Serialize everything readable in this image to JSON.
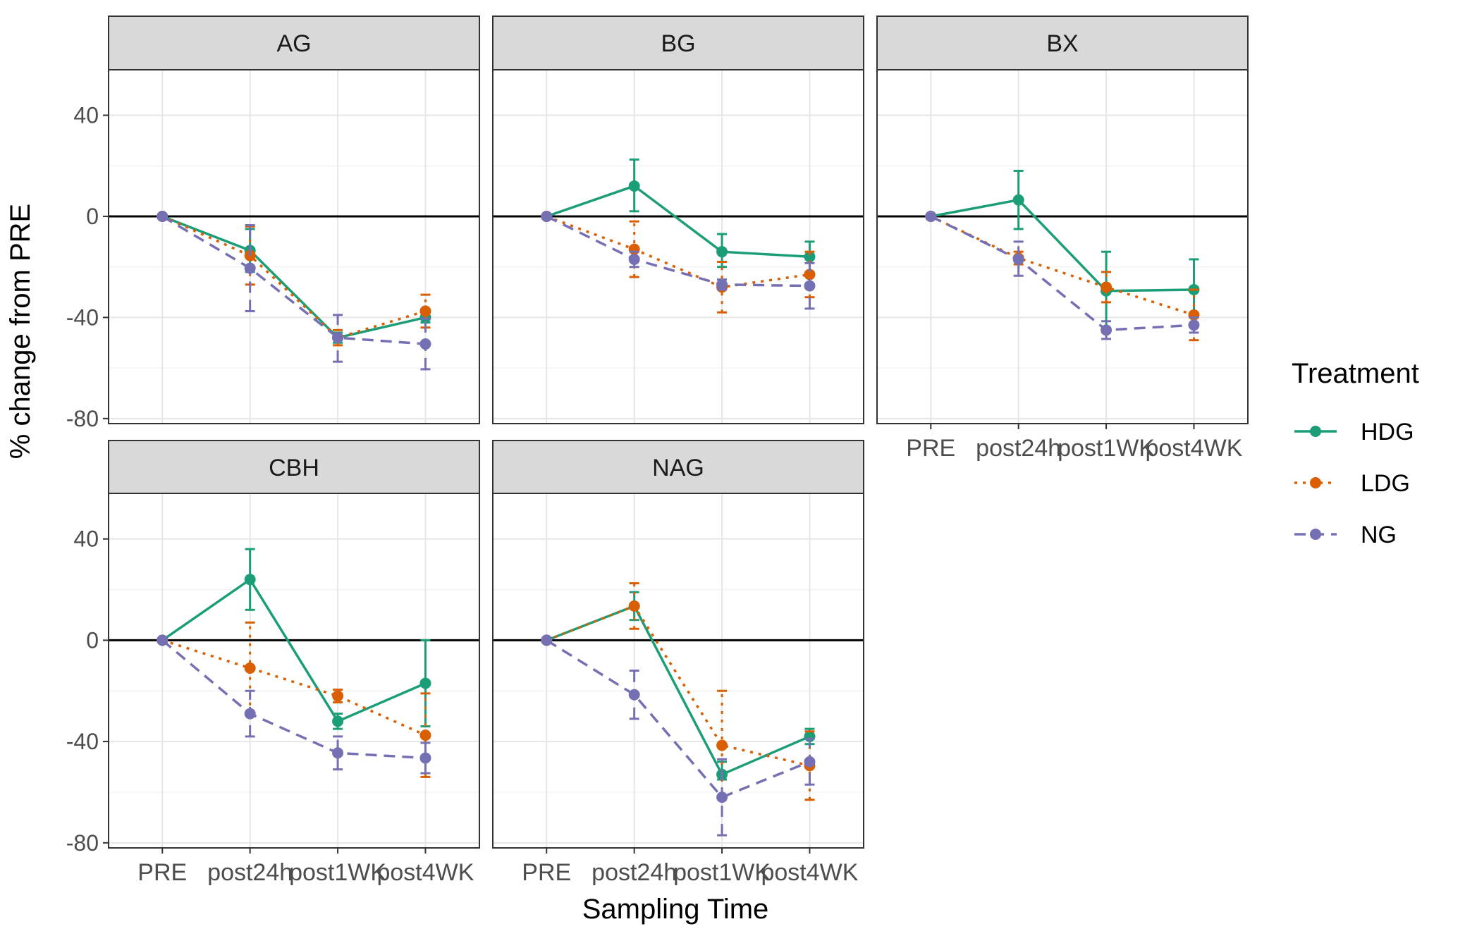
{
  "figure": {
    "xlabel": "Sampling Time",
    "ylabel": "% change from PRE",
    "legend_title": "Treatment",
    "legend_position": "right"
  },
  "chart_data": {
    "type": "line",
    "facet_by": "enzyme",
    "x": [
      "PRE",
      "post24h",
      "post1WK",
      "post4WK"
    ],
    "ylim": [
      -82,
      58
    ],
    "yticks": [
      -80,
      -40,
      0,
      40
    ],
    "reference_line_y": 0,
    "grid": true,
    "series_styles": [
      {
        "name": "HDG",
        "color": "#1B9E77",
        "dash": "solid"
      },
      {
        "name": "LDG",
        "color": "#D95F02",
        "dash": "dotted"
      },
      {
        "name": "NG",
        "color": "#7570B3",
        "dash": "dashed"
      }
    ],
    "panels": [
      {
        "title": "AG",
        "series": [
          {
            "name": "HDG",
            "values": [
              0,
              -13.5,
              -48,
              -40
            ],
            "err_low": [
              0,
              -22,
              -50,
              -42
            ],
            "err_high": [
              0,
              -5,
              -46,
              -37
            ]
          },
          {
            "name": "LDG",
            "values": [
              0,
              -15.5,
              -48,
              -37.5
            ],
            "err_low": [
              0,
              -27,
              -51,
              -44
            ],
            "err_high": [
              0,
              -4,
              -45,
              -31
            ]
          },
          {
            "name": "NG",
            "values": [
              0,
              -20.5,
              -48,
              -50.5
            ],
            "err_low": [
              0,
              -37.5,
              -57.5,
              -60.5
            ],
            "err_high": [
              0,
              -3.5,
              -39,
              -40.5
            ]
          }
        ]
      },
      {
        "title": "BG",
        "series": [
          {
            "name": "HDG",
            "values": [
              0,
              12,
              -14,
              -16
            ],
            "err_low": [
              0,
              2,
              -20,
              -22
            ],
            "err_high": [
              0,
              22.5,
              -7,
              -10
            ]
          },
          {
            "name": "LDG",
            "values": [
              0,
              -13,
              -28,
              -23
            ],
            "err_low": [
              0,
              -24,
              -38,
              -32
            ],
            "err_high": [
              0,
              -2,
              -18,
              -14
            ]
          },
          {
            "name": "NG",
            "values": [
              0,
              -17,
              -27,
              -27.5
            ],
            "err_low": [
              0,
              -20,
              -29,
              -36.5
            ],
            "err_high": [
              0,
              -14,
              -25,
              -18.5
            ]
          }
        ]
      },
      {
        "title": "BX",
        "series": [
          {
            "name": "HDG",
            "values": [
              0,
              6.5,
              -29.5,
              -29
            ],
            "err_low": [
              0,
              -5,
              -45,
              -40
            ],
            "err_high": [
              0,
              18,
              -14,
              -17
            ]
          },
          {
            "name": "LDG",
            "values": [
              0,
              -16.5,
              -28,
              -39
            ],
            "err_low": [
              0,
              -19,
              -34,
              -49
            ],
            "err_high": [
              0,
              -14,
              -22,
              -29
            ]
          },
          {
            "name": "NG",
            "values": [
              0,
              -17,
              -45,
              -43
            ],
            "err_low": [
              0,
              -23.5,
              -48.5,
              -46
            ],
            "err_high": [
              0,
              -10,
              -41.5,
              -40
            ]
          }
        ]
      },
      {
        "title": "CBH",
        "series": [
          {
            "name": "HDG",
            "values": [
              0,
              24,
              -32,
              -17
            ],
            "err_low": [
              0,
              12,
              -35,
              -34
            ],
            "err_high": [
              0,
              36,
              -29,
              0
            ]
          },
          {
            "name": "LDG",
            "values": [
              0,
              -11,
              -22,
              -37.5
            ],
            "err_low": [
              0,
              -29,
              -24.5,
              -54
            ],
            "err_high": [
              0,
              7,
              -19.5,
              -21
            ]
          },
          {
            "name": "NG",
            "values": [
              0,
              -29,
              -44.5,
              -46.5
            ],
            "err_low": [
              0,
              -38,
              -51,
              -52.5
            ],
            "err_high": [
              0,
              -20,
              -38,
              -40.5
            ]
          }
        ]
      },
      {
        "title": "NAG",
        "series": [
          {
            "name": "HDG",
            "values": [
              0,
              13.5,
              -53,
              -38
            ],
            "err_low": [
              0,
              8,
              -55,
              -41
            ],
            "err_high": [
              0,
              19,
              -48,
              -35
            ]
          },
          {
            "name": "LDG",
            "values": [
              0,
              13.5,
              -41.5,
              -49.5
            ],
            "err_low": [
              0,
              4.5,
              -62.5,
              -63
            ],
            "err_high": [
              0,
              22.5,
              -20,
              -36
            ]
          },
          {
            "name": "NG",
            "values": [
              0,
              -21.5,
              -62,
              -48
            ],
            "err_low": [
              0,
              -31,
              -77,
              -57
            ],
            "err_high": [
              0,
              -12,
              -47,
              -39
            ]
          }
        ]
      }
    ]
  }
}
